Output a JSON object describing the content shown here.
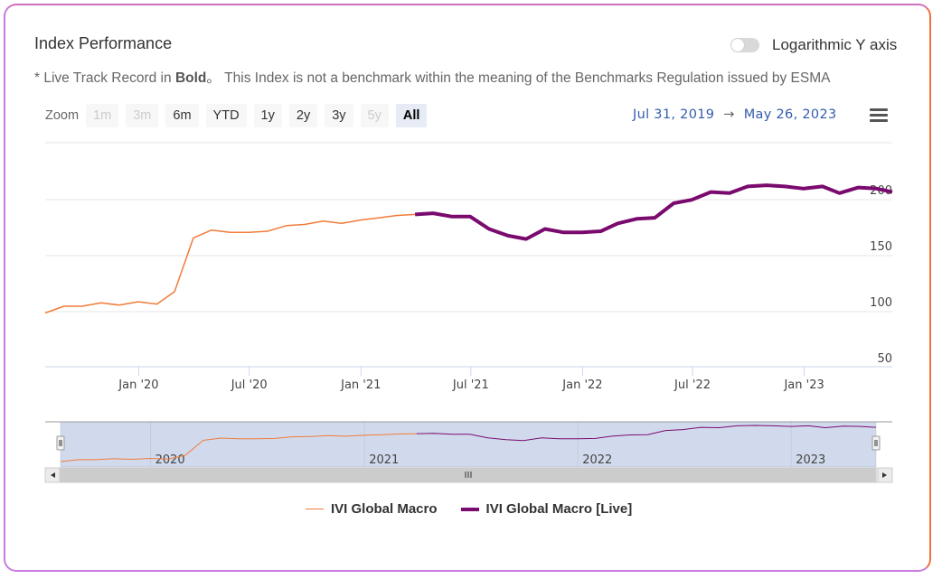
{
  "header": {
    "title": "Index Performance",
    "note_prefix": "* Live Track Record in ",
    "note_bold": "Bold",
    "note_suffix": "。 This Index is not a benchmark within the meaning of the Benchmarks Regulation issued by ESMA",
    "log_toggle_label": "Logarithmic Y axis",
    "log_toggle_on": false
  },
  "range_selector": {
    "zoom_label": "Zoom",
    "buttons": [
      {
        "label": "1m",
        "state": "disabled"
      },
      {
        "label": "3m",
        "state": "disabled"
      },
      {
        "label": "6m",
        "state": "normal"
      },
      {
        "label": "YTD",
        "state": "normal"
      },
      {
        "label": "1y",
        "state": "normal"
      },
      {
        "label": "2y",
        "state": "normal"
      },
      {
        "label": "3y",
        "state": "normal"
      },
      {
        "label": "5y",
        "state": "disabled"
      },
      {
        "label": "All",
        "state": "active"
      }
    ],
    "from": "Jul 31, 2019",
    "arrow": "→",
    "to": "May 26, 2023"
  },
  "icons": {
    "menu": "hamburger-menu-icon"
  },
  "chart_data": {
    "type": "line",
    "title": "",
    "xlabel": "",
    "ylabel": "",
    "ylim": [
      50,
      200
    ],
    "yticks": [
      50,
      100,
      150,
      200
    ],
    "xlim": [
      "2019-07-31",
      "2023-05-26"
    ],
    "xticks": [
      {
        "date": "2020-01-01",
        "label": "Jan '20"
      },
      {
        "date": "2020-07-01",
        "label": "Jul '20"
      },
      {
        "date": "2021-01-01",
        "label": "Jan '21"
      },
      {
        "date": "2021-07-01",
        "label": "Jul '21"
      },
      {
        "date": "2022-01-01",
        "label": "Jan '22"
      },
      {
        "date": "2022-07-01",
        "label": "Jul '22"
      },
      {
        "date": "2023-01-01",
        "label": "Jan '23"
      }
    ],
    "navigator_labels": [
      {
        "date": "2020-01-01",
        "label": "2020"
      },
      {
        "date": "2021-01-01",
        "label": "2021"
      },
      {
        "date": "2022-01-01",
        "label": "2022"
      },
      {
        "date": "2023-01-01",
        "label": "2023"
      }
    ],
    "grid": true,
    "legend": "bottom",
    "series": [
      {
        "name": "IVI Global Macro",
        "color": "#f07c3a",
        "x": [
          "2019-07-31",
          "2019-08-31",
          "2019-09-30",
          "2019-10-31",
          "2019-11-30",
          "2019-12-31",
          "2020-01-31",
          "2020-02-29",
          "2020-03-31",
          "2020-04-30",
          "2020-05-31",
          "2020-06-30",
          "2020-07-31",
          "2020-08-31",
          "2020-09-30",
          "2020-10-31",
          "2020-11-30",
          "2020-12-31",
          "2021-01-31",
          "2021-02-28",
          "2021-03-31"
        ],
        "y": [
          98,
          104,
          104,
          107,
          105,
          108,
          106,
          117,
          165,
          172,
          170,
          170,
          171,
          176,
          177,
          180,
          178,
          181,
          183,
          185,
          186
        ]
      },
      {
        "name": "IVI Global Macro [Live]",
        "color": "#7a0a6e",
        "x": [
          "2021-03-31",
          "2021-04-30",
          "2021-05-31",
          "2021-06-30",
          "2021-07-31",
          "2021-08-31",
          "2021-09-30",
          "2021-10-31",
          "2021-11-30",
          "2021-12-31",
          "2022-01-31",
          "2022-02-28",
          "2022-03-31",
          "2022-04-30",
          "2022-05-31",
          "2022-06-30",
          "2022-07-31",
          "2022-08-31",
          "2022-09-30",
          "2022-10-31",
          "2022-11-30",
          "2022-12-31",
          "2023-01-31",
          "2023-02-28",
          "2023-03-31",
          "2023-04-30",
          "2023-05-26"
        ],
        "y": [
          186,
          187,
          184,
          184,
          173,
          167,
          164,
          173,
          170,
          170,
          171,
          178,
          182,
          183,
          196,
          199,
          206,
          205,
          211,
          212,
          211,
          209,
          211,
          205,
          210,
          209,
          206
        ]
      }
    ]
  },
  "legend": {
    "item1": "IVI Global Macro",
    "item2": "IVI Global Macro [Live]"
  }
}
